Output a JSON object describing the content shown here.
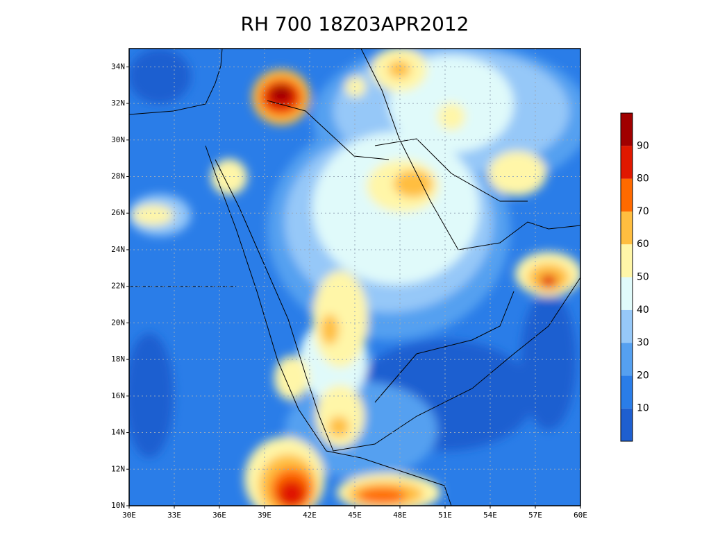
{
  "title": "RH 700 18Z03APR2012",
  "map": {
    "lon_ticks": [
      {
        "value": 30,
        "label": "30E"
      },
      {
        "value": 33,
        "label": "33E"
      },
      {
        "value": 36,
        "label": "36E"
      },
      {
        "value": 39,
        "label": "39E"
      },
      {
        "value": 42,
        "label": "42E"
      },
      {
        "value": 45,
        "label": "45E"
      },
      {
        "value": 48,
        "label": "48E"
      },
      {
        "value": 51,
        "label": "51E"
      },
      {
        "value": 54,
        "label": "54E"
      },
      {
        "value": 57,
        "label": "57E"
      },
      {
        "value": 60,
        "label": "60E"
      }
    ],
    "lat_ticks": [
      {
        "value": 10,
        "label": "10N"
      },
      {
        "value": 12,
        "label": "12N"
      },
      {
        "value": 14,
        "label": "14N"
      },
      {
        "value": 16,
        "label": "16N"
      },
      {
        "value": 18,
        "label": "18N"
      },
      {
        "value": 20,
        "label": "20N"
      },
      {
        "value": 22,
        "label": "22N"
      },
      {
        "value": 24,
        "label": "24N"
      },
      {
        "value": 26,
        "label": "26N"
      },
      {
        "value": 28,
        "label": "28N"
      },
      {
        "value": 30,
        "label": "30N"
      },
      {
        "value": 32,
        "label": "32N"
      },
      {
        "value": 34,
        "label": "34N"
      }
    ],
    "lonlim": [
      30,
      60
    ],
    "latlim": [
      10,
      35
    ]
  },
  "colorbar": {
    "levels": [
      10,
      20,
      30,
      40,
      50,
      60,
      70,
      80,
      90
    ],
    "colors": [
      "#1e5fd0",
      "#2a7de8",
      "#55a0f0",
      "#96c8f8",
      "#e0fafa",
      "#fff6a8",
      "#ffbe40",
      "#ff6a00",
      "#e01800",
      "#a00000"
    ]
  }
}
